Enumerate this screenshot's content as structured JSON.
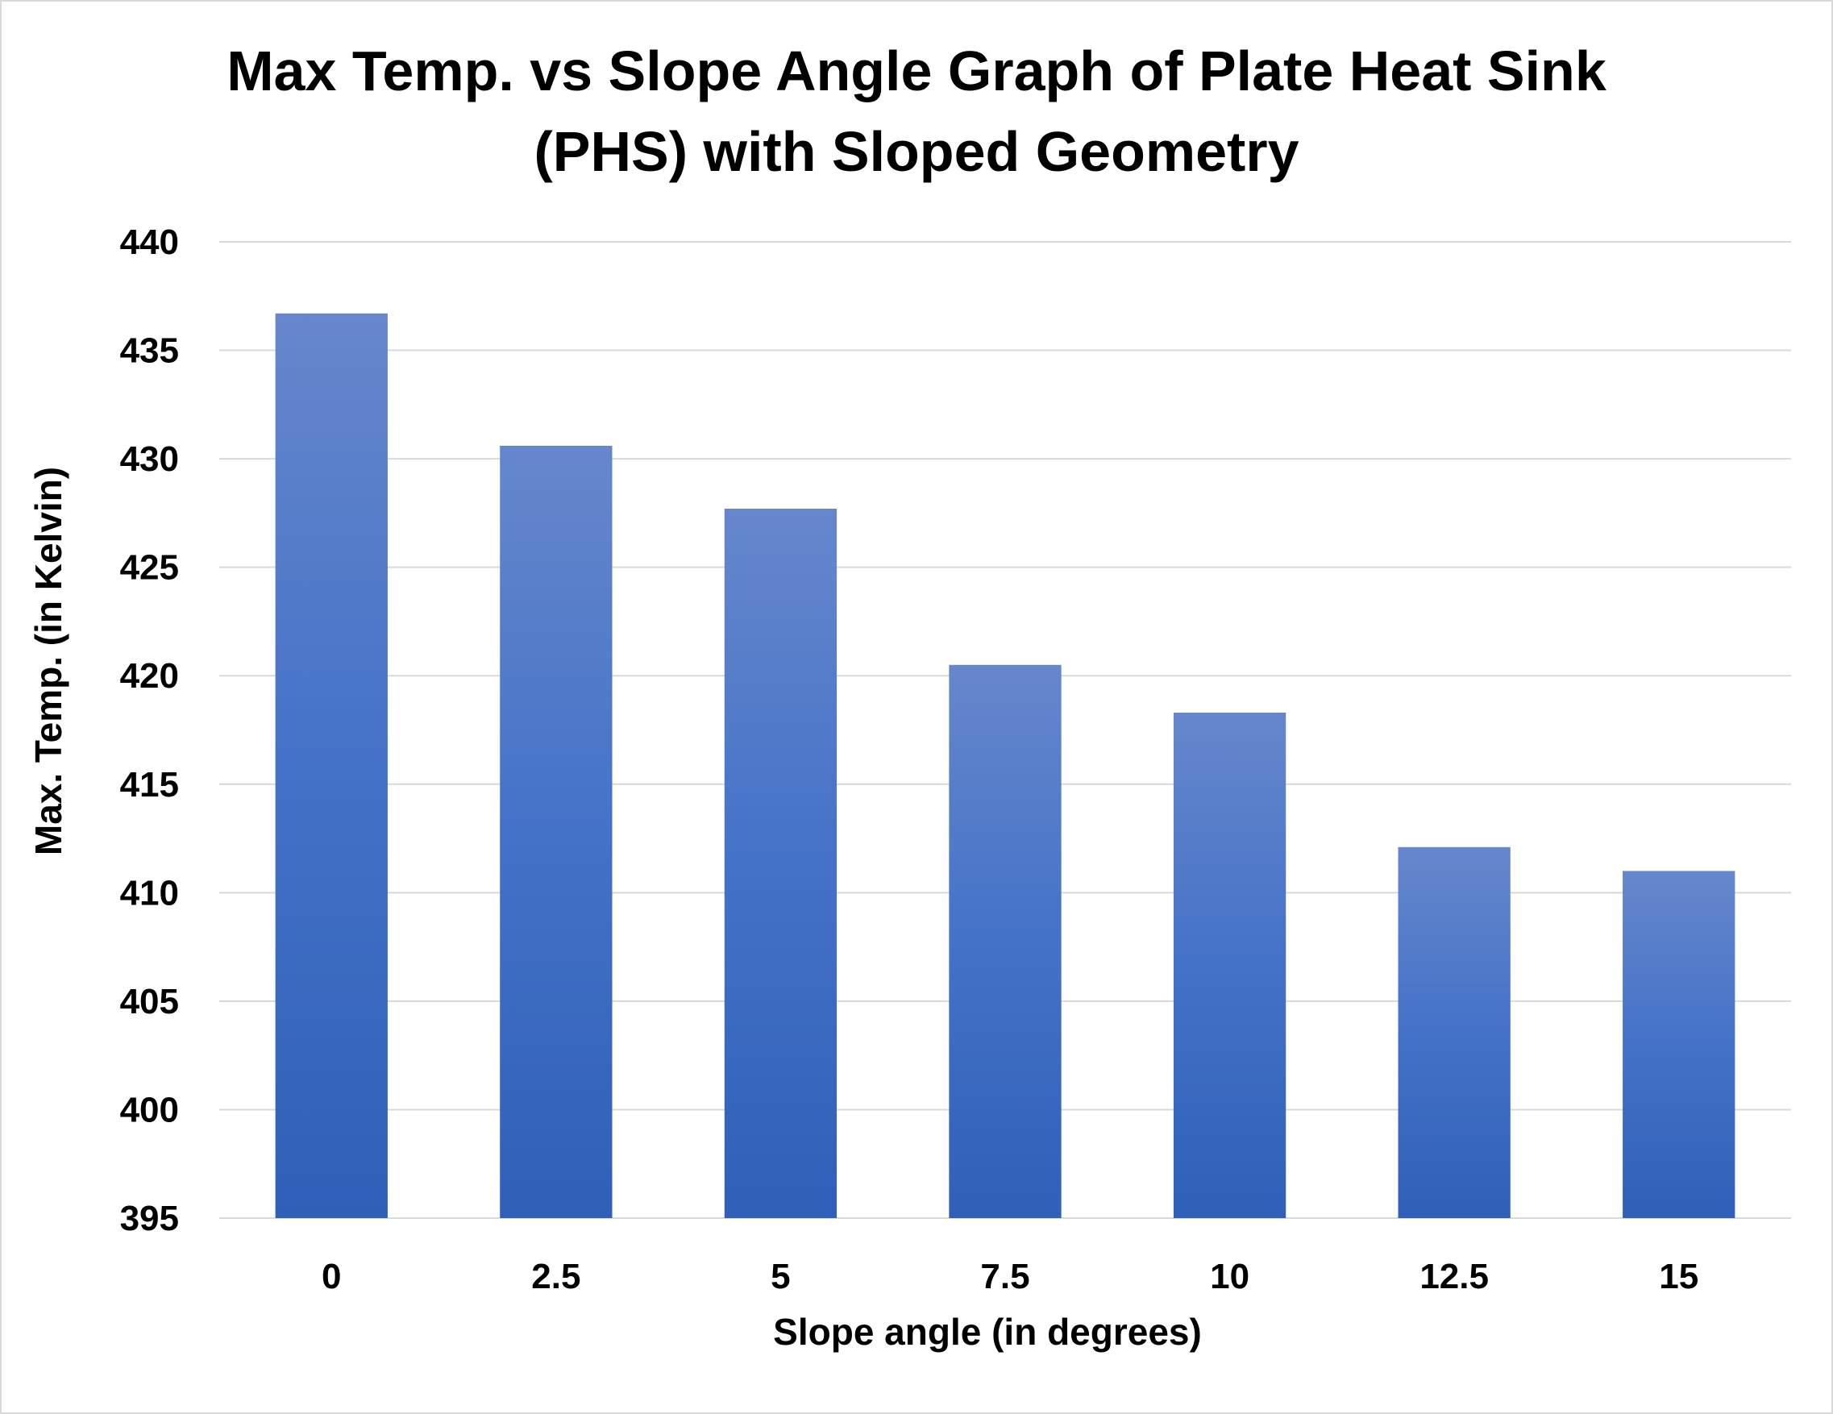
{
  "chart_data": {
    "type": "bar",
    "title": [
      "Max Temp. vs Slope Angle Graph of Plate Heat Sink",
      "(PHS) with Sloped Geometry"
    ],
    "xlabel": "Slope angle (in degrees)",
    "ylabel": "Max. Temp. (in Kelvin)",
    "categories": [
      "0",
      "2.5",
      "5",
      "7.5",
      "10",
      "12.5",
      "15"
    ],
    "values": [
      436.7,
      430.6,
      427.7,
      420.5,
      418.3,
      412.1,
      411.0
    ],
    "ylim": [
      395,
      440
    ],
    "yticks": [
      "395",
      "400",
      "405",
      "410",
      "415",
      "420",
      "425",
      "430",
      "435",
      "440"
    ],
    "grid": true,
    "legend": "none",
    "colors": {
      "bar_top": "#6687cc",
      "bar_mid": "#4472c8",
      "bar_bottom": "#2f5fb8",
      "grid": "#d9d9d9"
    }
  }
}
